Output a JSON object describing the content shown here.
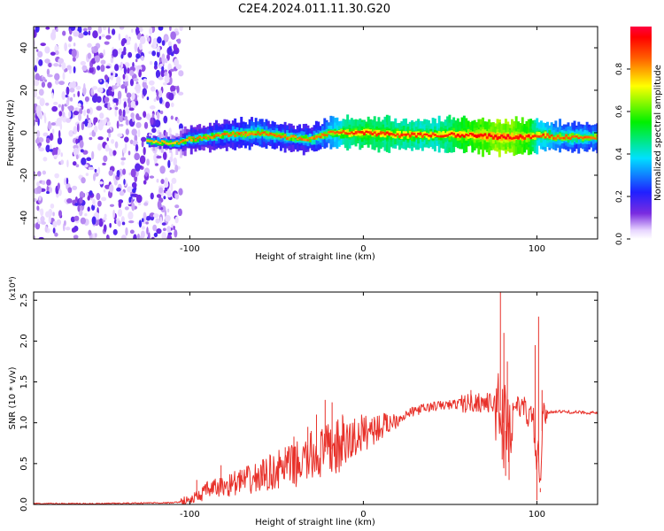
{
  "title": "C2E4.2024.011.11.30.G20",
  "colors": {
    "trace": "#e8312a",
    "spectrogram_noise": "#6b2bd9",
    "axes": "#000000"
  },
  "chart_data": [
    {
      "type": "heatmap",
      "xlabel": "Height of straight line (km)",
      "ylabel": "Frequency (Hz)",
      "xlim": [
        -190,
        135
      ],
      "ylim": [
        -50,
        50
      ],
      "xticks": [
        -100,
        0,
        100
      ],
      "yticks": [
        -40,
        -20,
        0,
        20,
        40
      ],
      "colorbar": {
        "label": "Normalized spectral amplitude",
        "range": [
          0,
          1
        ],
        "ticks": [
          "0.0",
          "0.2",
          "0.4",
          "0.6",
          "0.8"
        ],
        "colormap": "white-violet-blue-cyan-green-yellow-red"
      },
      "ridge": {
        "x": [
          -125,
          -110,
          -100,
          -80,
          -60,
          -45,
          -30,
          -20,
          -10,
          0,
          20,
          40,
          60,
          80,
          95,
          100,
          110,
          135
        ],
        "center_freq": [
          -4,
          -5,
          -3,
          -1,
          0,
          -2,
          -3,
          0,
          0,
          0,
          -1,
          -1,
          -1,
          -2,
          -2,
          -1,
          -2,
          -2
        ],
        "amplitude": [
          0.3,
          0.35,
          0.45,
          0.5,
          0.55,
          0.5,
          0.5,
          0.6,
          0.75,
          0.8,
          0.75,
          0.72,
          0.85,
          0.95,
          0.85,
          0.7,
          0.6,
          0.55
        ]
      },
      "noise_region_x": [
        -190,
        -105
      ]
    },
    {
      "type": "line",
      "xlabel": "Height of straight line (km)",
      "ylabel": "SNR (10 * v/v)",
      "y_scale_label": "(x10⁴)",
      "xlim": [
        -190,
        135
      ],
      "ylim": [
        0,
        2.6
      ],
      "xticks": [
        -100,
        0,
        100
      ],
      "yticks": [
        "0.0",
        "0.5",
        "1.0",
        "1.5",
        "2.0",
        "2.5"
      ],
      "series": [
        {
          "name": "",
          "x": [
            -190,
            -150,
            -120,
            -110,
            -100,
            -95,
            -90,
            -85,
            -80,
            -75,
            -70,
            -65,
            -60,
            -55,
            -50,
            -45,
            -40,
            -35,
            -30,
            -25,
            -20,
            -15,
            -10,
            -5,
            0,
            10,
            20,
            25,
            30,
            40,
            50,
            60,
            65,
            70,
            75,
            78,
            80,
            82,
            84,
            86,
            88,
            90,
            95,
            98,
            100,
            101,
            102,
            103,
            104,
            105,
            110,
            120,
            135
          ],
          "values": [
            0.01,
            0.01,
            0.02,
            0.02,
            0.05,
            0.1,
            0.18,
            0.2,
            0.22,
            0.26,
            0.28,
            0.3,
            0.33,
            0.38,
            0.42,
            0.45,
            0.48,
            0.52,
            0.58,
            0.62,
            0.66,
            0.7,
            0.74,
            0.8,
            0.88,
            0.95,
            1.05,
            1.1,
            1.15,
            1.2,
            1.22,
            1.24,
            1.25,
            1.25,
            1.23,
            1.2,
            1.1,
            0.9,
            1.0,
            1.15,
            1.22,
            1.2,
            1.12,
            1.0,
            0.5,
            0.6,
            0.2,
            0.9,
            1.05,
            1.12,
            1.14,
            1.13,
            1.12
          ]
        }
      ],
      "spikes": [
        {
          "x": -96,
          "value": 0.3
        },
        {
          "x": -82,
          "value": 0.48
        },
        {
          "x": -70,
          "value": 0.42
        },
        {
          "x": -58,
          "value": 0.55
        },
        {
          "x": -45,
          "value": 0.7
        },
        {
          "x": -40,
          "value": 0.83
        },
        {
          "x": -32,
          "value": 0.95
        },
        {
          "x": -30,
          "value": 0.9
        },
        {
          "x": -27,
          "value": 1.1
        },
        {
          "x": -22,
          "value": 1.28
        },
        {
          "x": -18,
          "value": 1.25
        },
        {
          "x": -12,
          "value": 1.1
        },
        {
          "x": -5,
          "value": 1.05
        },
        {
          "x": 5,
          "value": 1.05
        },
        {
          "x": 12,
          "value": 1.1
        },
        {
          "x": 62,
          "value": 1.4
        },
        {
          "x": 66,
          "value": 1.32
        },
        {
          "x": 79,
          "value": 2.6
        },
        {
          "x": 80,
          "value": 0.55
        },
        {
          "x": 81,
          "value": 2.1
        },
        {
          "x": 82,
          "value": 0.35
        },
        {
          "x": 83,
          "value": 1.75
        },
        {
          "x": 84,
          "value": 0.3
        },
        {
          "x": 99,
          "value": 1.95
        },
        {
          "x": 100,
          "value": 0.05
        },
        {
          "x": 101,
          "value": 2.3
        },
        {
          "x": 102,
          "value": 0.15
        },
        {
          "x": 103,
          "value": 1.4
        }
      ]
    }
  ]
}
